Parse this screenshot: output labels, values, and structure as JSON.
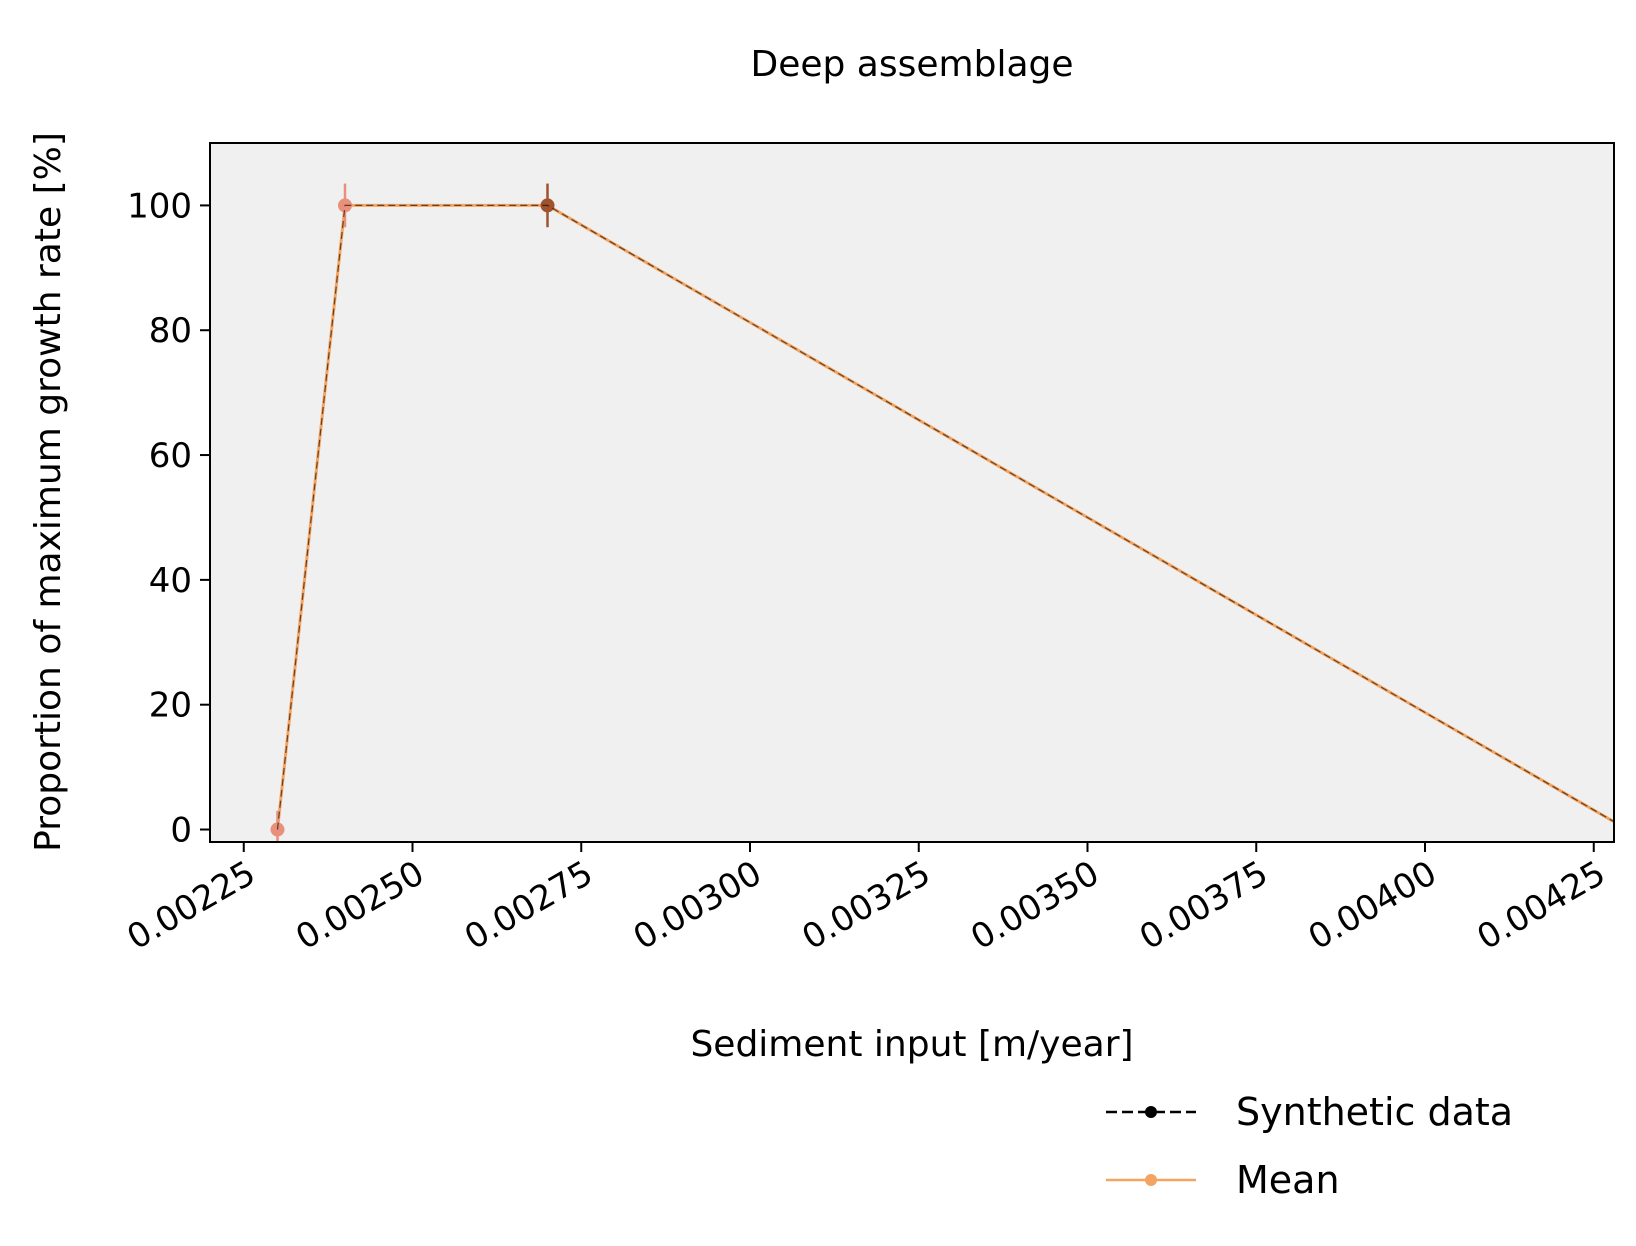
{
  "chart_data": {
    "type": "line",
    "title": "Deep assemblage",
    "xlabel": "Sediment input [m/year]",
    "ylabel": "Proportion of maximum growth rate [%]",
    "xlim": [
      0.0022,
      0.00428
    ],
    "ylim": [
      -2,
      110
    ],
    "xticks": [
      "0.00225",
      "0.00250",
      "0.00275",
      "0.00300",
      "0.00325",
      "0.00350",
      "0.00375",
      "0.00400",
      "0.00425"
    ],
    "yticks": [
      "0",
      "20",
      "40",
      "60",
      "80",
      "100"
    ],
    "grid": false,
    "background": "#f0f0f0",
    "legend_position": "below-right",
    "series": [
      {
        "name": "Synthetic data",
        "color": "#000000",
        "style": "dashed",
        "x": [
          0.0023,
          0.0024,
          0.0027,
          0.0043
        ],
        "y": [
          0,
          100,
          100,
          0
        ]
      },
      {
        "name": "Mean",
        "color": "#f4a460",
        "style": "solid",
        "x": [
          0.0023,
          0.0024,
          0.0027,
          0.0043
        ],
        "y": [
          0,
          100,
          100,
          0
        ],
        "point_colors": [
          "#e8907a",
          "#e8907a",
          "#a0522d",
          "#a0522d"
        ],
        "error": [
          3,
          3.5,
          3.5,
          3.5
        ]
      }
    ]
  }
}
